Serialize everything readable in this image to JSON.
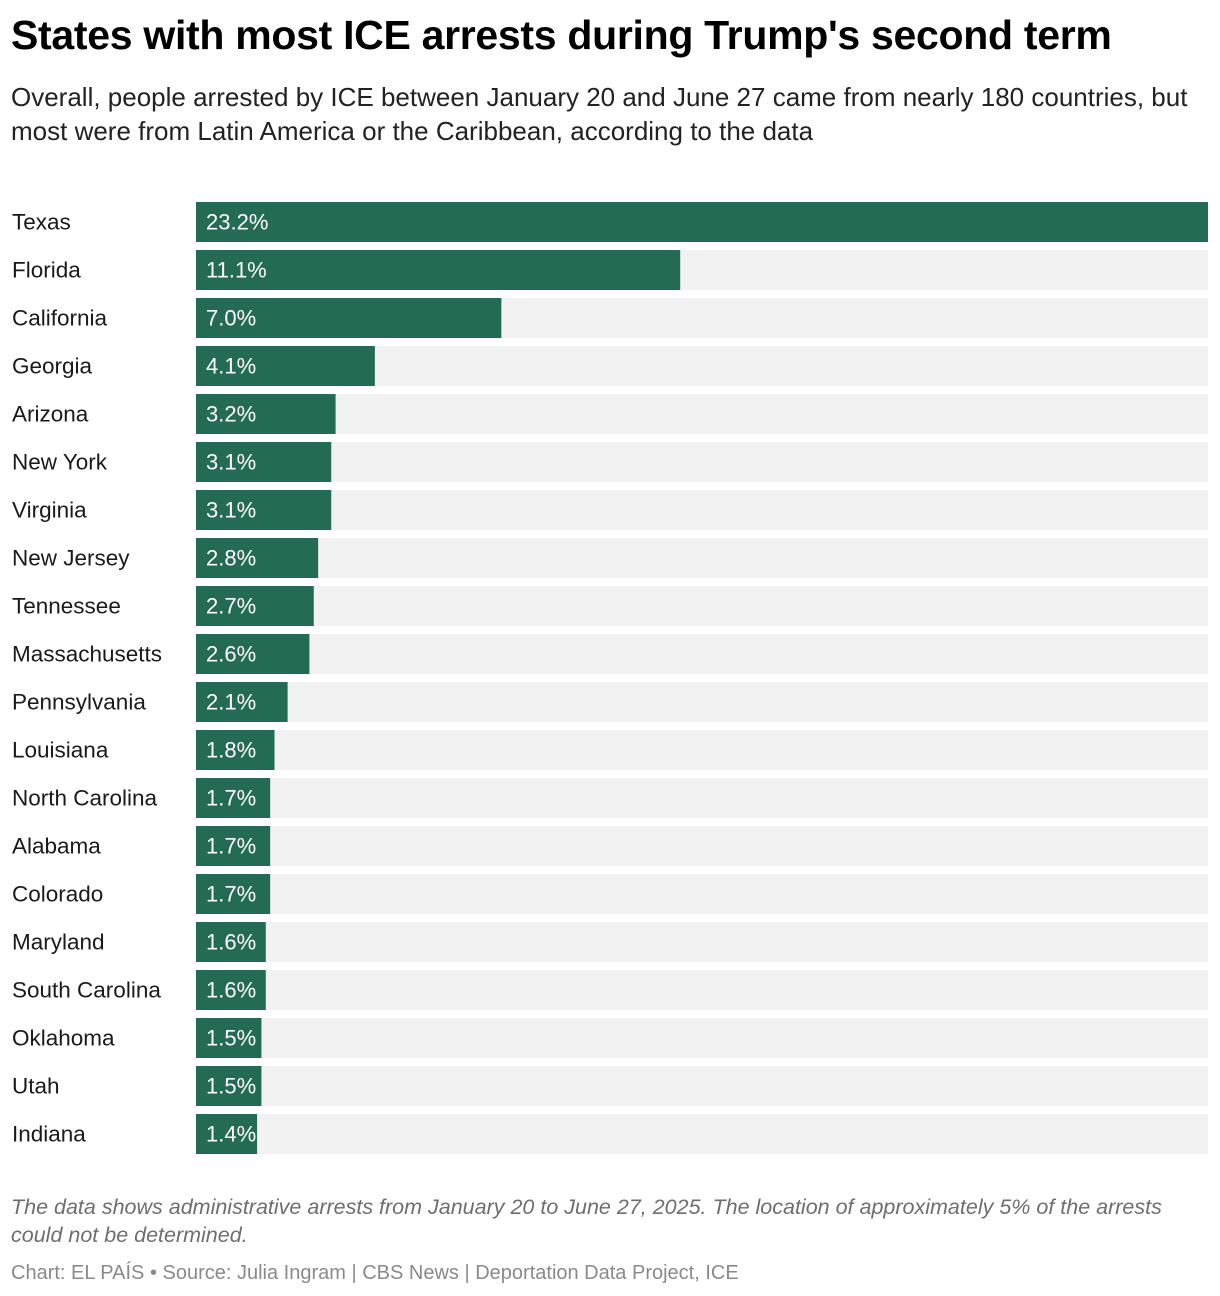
{
  "colors": {
    "bar": "#236b53",
    "track": "#f2f2f2",
    "label_inside": "#ffffff",
    "label_outside": "#1a1a1a"
  },
  "header": {
    "title": "States with most ICE arrests during Trump's second term",
    "subtitle": "Overall, people arrested by ICE between January 20 and June 27 came from nearly 180 countries, but most were from Latin America or the Caribbean, according to the data"
  },
  "footer": {
    "notes": "The data shows administrative arrests from January 20 to June 27, 2025. The location of approximately 5% of the arrests could not be determined.",
    "credits": "Chart: EL PAÍS • Source: Julia Ingram | CBS News | Deportation Data Project, ICE"
  },
  "chart_data": {
    "type": "bar",
    "orientation": "horizontal",
    "title": "States with most ICE arrests during Trump's second term",
    "xlabel": "",
    "ylabel": "",
    "xlim": [
      0,
      23.2
    ],
    "grid": false,
    "legend": "none",
    "value_format": "{v}%",
    "categories": [
      "Texas",
      "Florida",
      "California",
      "Georgia",
      "Arizona",
      "New York",
      "Virginia",
      "New Jersey",
      "Tennessee",
      "Massachusetts",
      "Pennsylvania",
      "Louisiana",
      "North Carolina",
      "Alabama",
      "Colorado",
      "Maryland",
      "South Carolina",
      "Oklahoma",
      "Utah",
      "Indiana"
    ],
    "values": [
      23.2,
      11.1,
      7.0,
      4.1,
      3.2,
      3.1,
      3.1,
      2.8,
      2.7,
      2.6,
      2.1,
      1.8,
      1.7,
      1.7,
      1.7,
      1.6,
      1.6,
      1.5,
      1.5,
      1.4
    ],
    "value_labels": [
      "23.2%",
      "11.1%",
      "7.0%",
      "4.1%",
      "3.2%",
      "3.1%",
      "3.1%",
      "2.8%",
      "2.7%",
      "2.6%",
      "2.1%",
      "1.8%",
      "1.7%",
      "1.7%",
      "1.7%",
      "1.6%",
      "1.6%",
      "1.5%",
      "1.5%",
      "1.4%"
    ]
  }
}
